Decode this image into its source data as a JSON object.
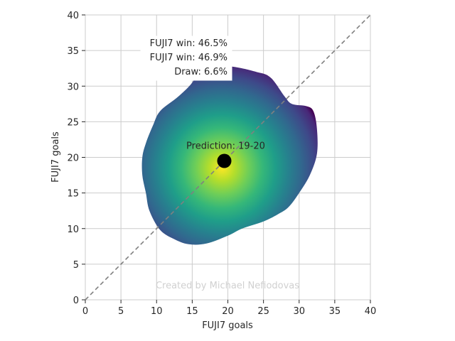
{
  "chart_data": {
    "type": "heatmap",
    "xlabel": "FUJI7 goals",
    "ylabel": "FUJI7 goals",
    "xlim": [
      0,
      40
    ],
    "ylim": [
      0,
      40
    ],
    "xticks": [
      0,
      5,
      10,
      15,
      20,
      25,
      30,
      35,
      40
    ],
    "yticks": [
      0,
      5,
      10,
      15,
      20,
      25,
      30,
      35,
      40
    ],
    "grid": true,
    "diagonal_line": {
      "from": [
        0,
        0
      ],
      "to": [
        40,
        40
      ],
      "style": "dashed",
      "color": "#808080"
    },
    "density": {
      "colormap": "viridis",
      "peak": [
        19.2,
        18.5
      ],
      "outline": [
        [
          16,
          32.5
        ],
        [
          20,
          32.8
        ],
        [
          24,
          32
        ],
        [
          26,
          31.2
        ],
        [
          28,
          28.5
        ],
        [
          29,
          27.5
        ],
        [
          31,
          27.2
        ],
        [
          32,
          26.5
        ],
        [
          32.5,
          24
        ],
        [
          32.5,
          20.5
        ],
        [
          31.5,
          17.5
        ],
        [
          30,
          15
        ],
        [
          28.5,
          13
        ],
        [
          27,
          12
        ],
        [
          25,
          11
        ],
        [
          22,
          10
        ],
        [
          20,
          9
        ],
        [
          17,
          7.9
        ],
        [
          14.5,
          7.8
        ],
        [
          12.5,
          8.5
        ],
        [
          10.5,
          9.8
        ],
        [
          9,
          12.5
        ],
        [
          8.5,
          15
        ],
        [
          8,
          17.5
        ],
        [
          8,
          20
        ],
        [
          8.5,
          22
        ],
        [
          9.5,
          24.5
        ],
        [
          10.5,
          26.5
        ],
        [
          13,
          28.5
        ],
        [
          15,
          30.5
        ]
      ]
    },
    "prediction_point": {
      "x": 19.5,
      "y": 19.5,
      "color": "#000000"
    },
    "annotations": {
      "prediction": "Prediction: 19-20",
      "home_win": "FUJI7 win: 46.5%",
      "away_win": "FUJI7 win: 46.9%",
      "draw": "Draw: 6.6%"
    },
    "watermark": "Created by Michael Nefiodovas"
  }
}
